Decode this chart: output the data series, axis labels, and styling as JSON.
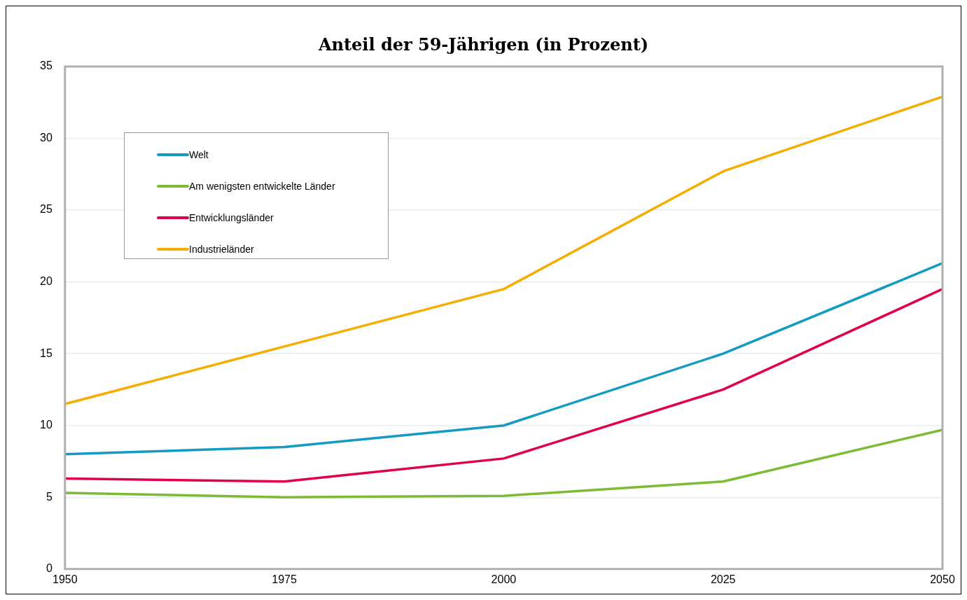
{
  "chart_data": {
    "type": "line",
    "title": "Anteil der 59-Jährigen (in Prozent)",
    "x": [
      1950,
      1975,
      2000,
      2025,
      2050
    ],
    "series": [
      {
        "name": "Welt",
        "color": "#159ac4",
        "values": [
          8.0,
          8.5,
          10.0,
          15.0,
          21.3
        ]
      },
      {
        "name": "Am wenigsten entwickelte Länder",
        "color": "#7dbb35",
        "values": [
          5.3,
          5.0,
          5.1,
          6.1,
          9.7
        ]
      },
      {
        "name": "Entwicklungsländer",
        "color": "#e0004d",
        "values": [
          6.3,
          6.1,
          7.7,
          12.5,
          19.5
        ]
      },
      {
        "name": "Industrieländer",
        "color": "#f5ad00",
        "values": [
          11.5,
          15.5,
          19.5,
          27.7,
          32.9
        ]
      }
    ],
    "xlim": [
      1950,
      2050
    ],
    "xticks": [
      1950,
      1975,
      2000,
      2025,
      2050
    ],
    "ylim": [
      0,
      35
    ],
    "yticks": [
      0,
      5,
      10,
      15,
      20,
      25,
      30,
      35
    ],
    "grid": "y",
    "legend": "top left",
    "marker": "none",
    "line_style": "solid"
  }
}
